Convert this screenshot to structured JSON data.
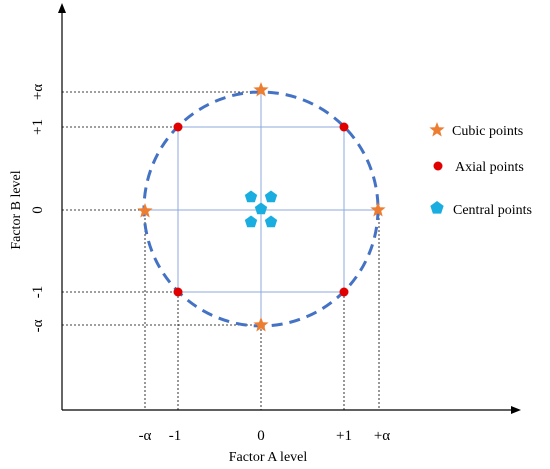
{
  "diagram": {
    "x_axis_label": "Factor A level",
    "y_axis_label": "Factor B level",
    "x_ticks": [
      "-α",
      "-1",
      "0",
      "+1",
      "+α"
    ],
    "y_ticks": [
      "-α",
      "-1",
      "0",
      "+1",
      "+α"
    ],
    "legend": [
      {
        "label": "Cubic points",
        "marker": "star",
        "color": "#ed7d31"
      },
      {
        "label": "Axial points",
        "marker": "circle",
        "color": "#e00000"
      },
      {
        "label": "Central points",
        "marker": "pentagon",
        "color": "#1aaee0"
      }
    ],
    "colors": {
      "circle": "#4472c4",
      "grid_lines": "#8eaadb",
      "axis": "#000000"
    }
  }
}
